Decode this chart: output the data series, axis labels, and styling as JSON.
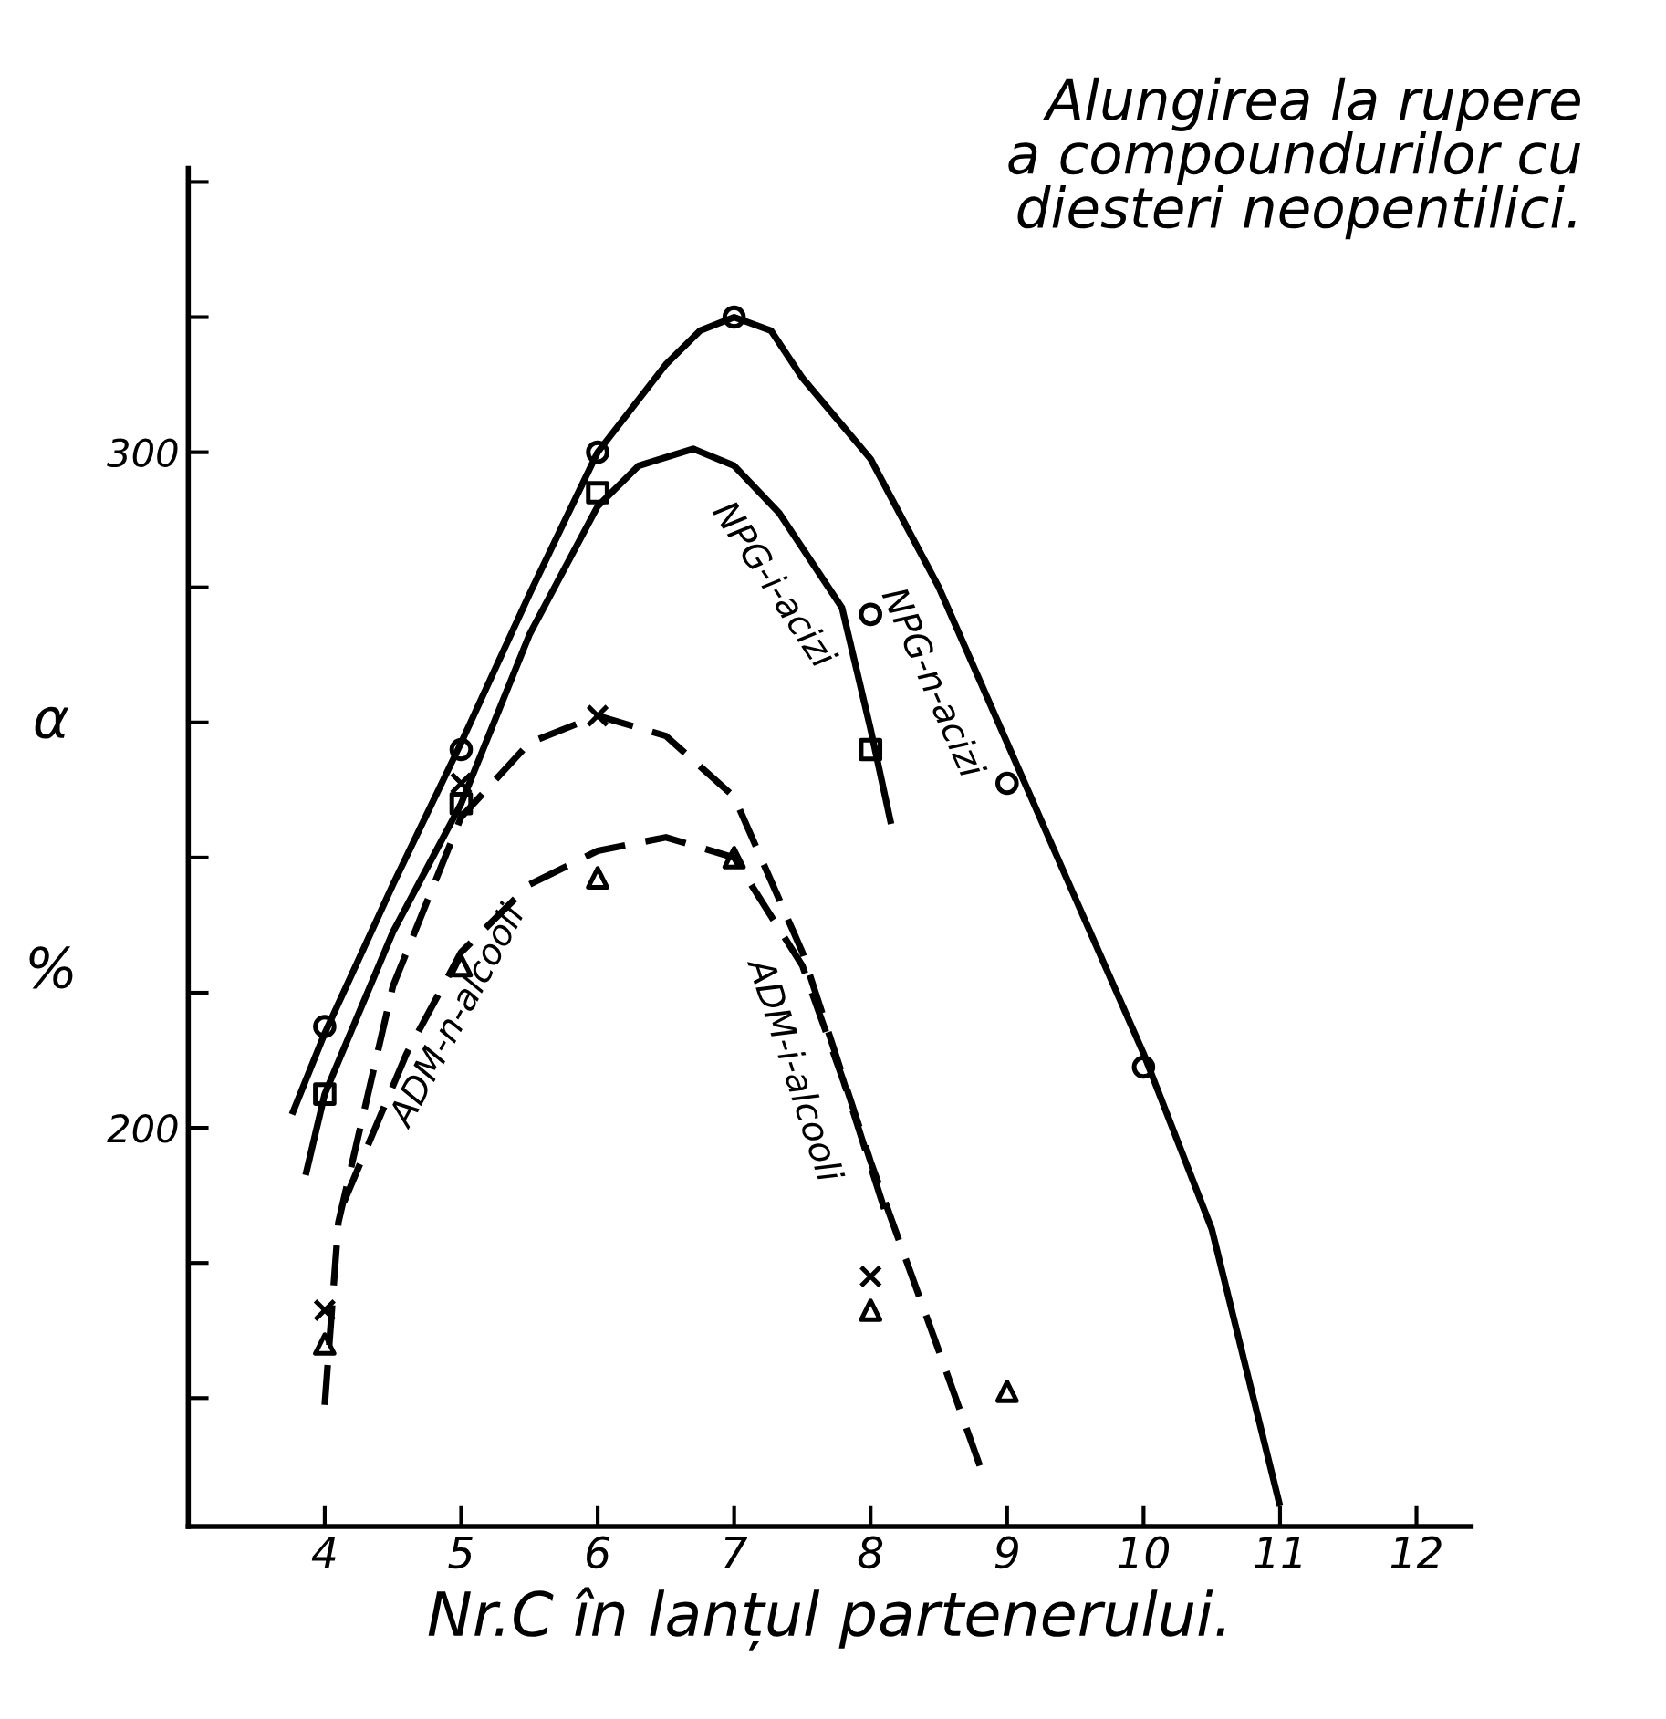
{
  "chart_data": {
    "type": "line",
    "title": "Alungirea la rupere\na compoundurilor cu\ndiesteri neopentilici.",
    "xlabel": "Nr.C în lanțul partenerului.",
    "ylabel": "α %",
    "xlim": [
      3,
      12.4
    ],
    "ylim": [
      141,
      342
    ],
    "xticks": [
      4,
      5,
      6,
      7,
      8,
      9,
      10,
      11,
      12
    ],
    "yticks": [
      {
        "value": 160,
        "label": null
      },
      {
        "value": 180,
        "label": null
      },
      200,
      {
        "value": 220,
        "label": null
      },
      {
        "value": 240,
        "label": null
      },
      {
        "value": 260,
        "label": null
      },
      {
        "value": 280,
        "label": null
      },
      300,
      {
        "value": 320,
        "label": null
      },
      {
        "value": 340,
        "label": null
      }
    ],
    "grid": false,
    "legend": false,
    "series": [
      {
        "name": "NPG-n-acizi",
        "color": "#000000",
        "line_style": "solid",
        "x": [
          3.76,
          4,
          4.5,
          5,
          5.5,
          6,
          6.5,
          6.75,
          7,
          7.27,
          7.5,
          8,
          8.5,
          9,
          9.5,
          10,
          10.5,
          11
        ],
        "values": [
          202,
          214,
          236,
          257,
          279,
          300,
          313,
          318,
          320,
          318,
          311,
          299,
          280,
          257,
          234,
          211,
          185,
          144
        ]
      },
      {
        "name": "NPG-i-acizi",
        "color": "#000000",
        "line_style": "solid",
        "x": [
          3.86,
          4,
          4.5,
          5,
          5.5,
          6,
          6.3,
          6.7,
          7,
          7.33,
          7.79,
          8,
          8.15
        ],
        "values": [
          193,
          205,
          229,
          248,
          273,
          292,
          298,
          300.5,
          298,
          291,
          277,
          259,
          245
        ]
      },
      {
        "name": "ADM-i-alcooli",
        "color": "#000000",
        "line_style": "dashed",
        "x": [
          4,
          4.1,
          4.5,
          5,
          5.5,
          6,
          6.5,
          7,
          7.5,
          8,
          8.5,
          8.8
        ],
        "values": [
          159,
          186,
          221,
          246,
          257,
          261,
          258,
          249,
          226,
          195,
          167,
          150
        ]
      },
      {
        "name": "ADM-n-alcooli",
        "color": "#000000",
        "line_style": "dashed",
        "x": [
          4.14,
          4.6,
          5,
          5.5,
          6,
          6.5,
          7,
          7.5,
          7.8,
          8.1
        ],
        "values": [
          189,
          211,
          226,
          236,
          241,
          243,
          240,
          224,
          207,
          188
        ]
      },
      {
        "type": "scatter",
        "marker": "circle",
        "color": "#000000",
        "x": [
          4,
          5,
          6,
          7,
          8,
          9,
          10
        ],
        "values": [
          215,
          256,
          300,
          320,
          276,
          251,
          209
        ]
      },
      {
        "type": "scatter",
        "marker": "square",
        "color": "#000000",
        "x": [
          4,
          5,
          6,
          8
        ],
        "values": [
          205,
          248,
          294,
          256
        ]
      },
      {
        "type": "scatter",
        "marker": "cross",
        "color": "#000000",
        "x": [
          4,
          5,
          6,
          8
        ],
        "values": [
          173,
          251,
          261,
          178
        ]
      },
      {
        "type": "scatter",
        "marker": "triangle",
        "color": "#000000",
        "x": [
          4,
          5,
          6,
          7,
          8,
          9
        ],
        "values": [
          168,
          224,
          237,
          240,
          173,
          161
        ]
      }
    ]
  }
}
